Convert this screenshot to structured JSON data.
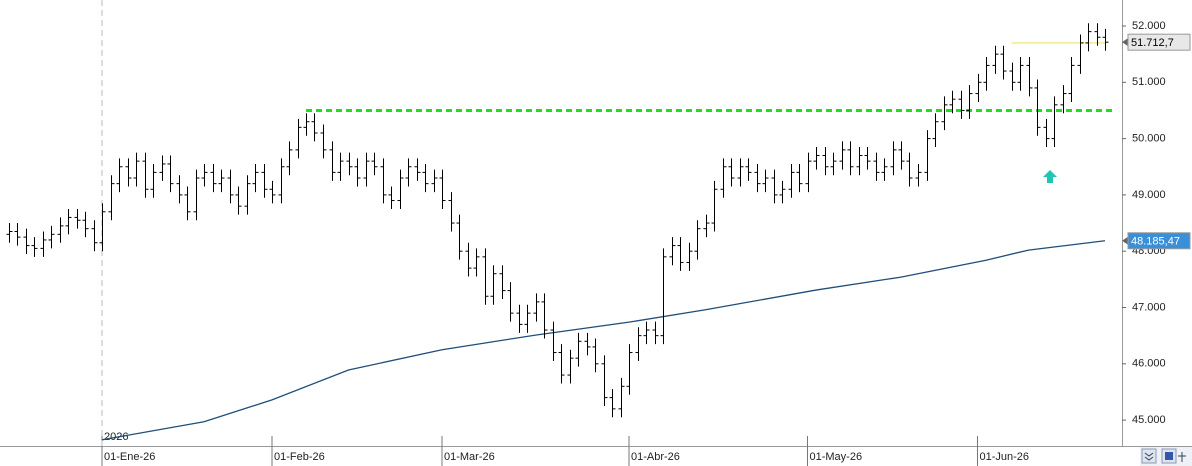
{
  "chart_data": {
    "type": "ohlc",
    "color": "#000000",
    "xlim": [
      -12,
      120
    ],
    "ylim": [
      44540,
      52462
    ],
    "yticks": [
      {
        "value": 52000,
        "label": "52.000"
      },
      {
        "value": 51000,
        "label": "51.000"
      },
      {
        "value": 50000,
        "label": "50.000"
      },
      {
        "value": 49000,
        "label": "49.000"
      },
      {
        "value": 48000,
        "label": "48.000"
      },
      {
        "value": 47000,
        "label": "47.000"
      },
      {
        "value": 46000,
        "label": "46.000"
      },
      {
        "value": 45000,
        "label": "45.000"
      }
    ],
    "xticks": [
      {
        "value": 0,
        "label": "01-Ene-26"
      },
      {
        "value": 20,
        "label": "01-Feb-26"
      },
      {
        "value": 40,
        "label": "01-Mar-26"
      },
      {
        "value": 62,
        "label": "01-Abr-26"
      },
      {
        "value": 83,
        "label": "01-May-26"
      },
      {
        "value": 103,
        "label": "01-Jun-26"
      }
    ],
    "year_label": "2026",
    "x": [
      -11,
      -10,
      -9,
      -8,
      -7,
      -6,
      -5,
      -4,
      -3,
      -2,
      -1,
      0,
      1,
      2,
      3,
      4,
      5,
      6,
      7,
      8,
      9,
      10,
      11,
      12,
      13,
      14,
      15,
      16,
      17,
      18,
      19,
      20,
      21,
      22,
      23,
      24,
      25,
      26,
      27,
      28,
      29,
      30,
      31,
      32,
      33,
      34,
      35,
      36,
      37,
      38,
      39,
      40,
      41,
      42,
      43,
      44,
      45,
      46,
      47,
      48,
      49,
      50,
      51,
      52,
      53,
      54,
      55,
      56,
      57,
      58,
      59,
      60,
      61,
      62,
      63,
      64,
      65,
      66,
      67,
      68,
      69,
      70,
      71,
      72,
      73,
      74,
      75,
      76,
      77,
      78,
      79,
      80,
      81,
      82,
      83,
      84,
      85,
      86,
      87,
      88,
      89,
      90,
      91,
      92,
      93,
      94,
      95,
      96,
      97,
      98,
      99,
      100,
      101,
      102,
      103,
      104,
      105,
      106,
      107,
      108,
      109,
      110,
      111,
      112,
      113,
      114,
      115,
      116,
      117,
      118
    ],
    "open": [
      48300,
      48350,
      48250,
      48100,
      48050,
      48200,
      48300,
      48450,
      48600,
      48550,
      48400,
      48150,
      48700,
      49200,
      49500,
      49300,
      49600,
      49100,
      49400,
      49550,
      49200,
      49000,
      48700,
      49300,
      49400,
      49200,
      49300,
      49000,
      48800,
      49200,
      49400,
      49100,
      49000,
      49500,
      49800,
      50200,
      50300,
      50100,
      49800,
      49400,
      49600,
      49500,
      49300,
      49600,
      49500,
      49000,
      48900,
      49300,
      49500,
      49400,
      49200,
      49300,
      48900,
      48500,
      48000,
      47700,
      47900,
      47200,
      47600,
      47300,
      46900,
      46700,
      46900,
      47100,
      46600,
      46200,
      45800,
      46100,
      46400,
      46300,
      46000,
      45400,
      45200,
      45600,
      46200,
      46500,
      46600,
      46500,
      47900,
      48100,
      47800,
      48000,
      48400,
      48500,
      49100,
      49500,
      49300,
      49500,
      49400,
      49200,
      49300,
      49000,
      49100,
      49400,
      49200,
      49600,
      49700,
      49500,
      49600,
      49800,
      49500,
      49700,
      49600,
      49400,
      49500,
      49800,
      49600,
      49300,
      49400,
      50000,
      50300,
      50600,
      50700,
      50500,
      50800,
      51000,
      51300,
      51500,
      51200,
      51000,
      51300,
      50900,
      50200,
      50000,
      50600,
      50800,
      51300,
      51700,
      51900,
      51800
    ],
    "high": [
      48500,
      48500,
      48400,
      48250,
      48350,
      48450,
      48600,
      48750,
      48750,
      48700,
      48550,
      48850,
      49350,
      49650,
      49650,
      49750,
      49750,
      49550,
      49700,
      49700,
      49350,
      49150,
      49450,
      49550,
      49550,
      49450,
      49450,
      49150,
      49350,
      49550,
      49550,
      49250,
      49650,
      49950,
      50350,
      50450,
      50450,
      50250,
      49950,
      49750,
      49750,
      49650,
      49750,
      49750,
      49650,
      49150,
      49450,
      49650,
      49650,
      49550,
      49450,
      49450,
      49050,
      48650,
      48150,
      48050,
      48050,
      47750,
      47750,
      47450,
      47050,
      47050,
      47250,
      47250,
      46750,
      46350,
      46250,
      46550,
      46550,
      46450,
      46150,
      45550,
      45750,
      46350,
      46650,
      46750,
      46750,
      48050,
      48250,
      48250,
      48150,
      48550,
      48650,
      49250,
      49650,
      49650,
      49650,
      49650,
      49550,
      49450,
      49450,
      49250,
      49550,
      49550,
      49750,
      49850,
      49850,
      49750,
      49950,
      49950,
      49850,
      49850,
      49750,
      49650,
      49950,
      49950,
      49750,
      49550,
      50150,
      50450,
      50750,
      50850,
      50850,
      50950,
      51150,
      51450,
      51650,
      51650,
      51350,
      51450,
      51450,
      51050,
      50350,
      50750,
      50950,
      51450,
      51850,
      52050,
      52050,
      51950
    ],
    "low": [
      48150,
      48100,
      47950,
      47900,
      47900,
      48050,
      48150,
      48300,
      48400,
      48250,
      48000,
      48000,
      48550,
      49050,
      49150,
      49150,
      48950,
      48950,
      49250,
      49050,
      48850,
      48550,
      48550,
      49150,
      49050,
      49050,
      48850,
      48650,
      48650,
      49050,
      48950,
      48850,
      48850,
      49350,
      49650,
      50050,
      49950,
      49650,
      49250,
      49250,
      49350,
      49150,
      49150,
      49350,
      48850,
      48750,
      48750,
      49150,
      49250,
      49050,
      49050,
      48750,
      48350,
      47850,
      47550,
      47550,
      47050,
      47050,
      47150,
      46750,
      46550,
      46550,
      46750,
      46450,
      46050,
      45650,
      45650,
      45950,
      46150,
      45850,
      45250,
      45050,
      45050,
      45450,
      46050,
      46350,
      46350,
      46350,
      47750,
      47650,
      47650,
      47850,
      48250,
      48350,
      48950,
      49150,
      49150,
      49250,
      49050,
      49050,
      48850,
      48850,
      48950,
      49050,
      49050,
      49450,
      49350,
      49350,
      49450,
      49350,
      49350,
      49450,
      49250,
      49250,
      49350,
      49450,
      49150,
      49150,
      49250,
      49850,
      50150,
      50450,
      50350,
      50350,
      50650,
      50850,
      51150,
      51050,
      50850,
      50850,
      50750,
      50050,
      49850,
      49850,
      50450,
      50650,
      51150,
      51550,
      51650,
      51560
    ],
    "close": [
      48350,
      48250,
      48100,
      48050,
      48200,
      48300,
      48450,
      48600,
      48550,
      48400,
      48150,
      48700,
      49200,
      49500,
      49300,
      49600,
      49100,
      49400,
      49550,
      49200,
      49000,
      48700,
      49300,
      49400,
      49200,
      49300,
      49000,
      48800,
      49200,
      49400,
      49100,
      49000,
      49500,
      49800,
      50200,
      50300,
      50100,
      49800,
      49400,
      49600,
      49500,
      49300,
      49600,
      49500,
      49000,
      48900,
      49300,
      49500,
      49400,
      49200,
      49300,
      48900,
      48500,
      48000,
      47700,
      47900,
      47200,
      47600,
      47300,
      46900,
      46700,
      46900,
      47100,
      46600,
      46200,
      45800,
      46100,
      46400,
      46300,
      46000,
      45400,
      45200,
      45600,
      46200,
      46500,
      46600,
      46500,
      47900,
      48100,
      47800,
      48000,
      48400,
      48500,
      49100,
      49500,
      49300,
      49500,
      49400,
      49200,
      49300,
      49000,
      49100,
      49400,
      49200,
      49600,
      49700,
      49500,
      49600,
      49800,
      49500,
      49700,
      49600,
      49400,
      49500,
      49800,
      49600,
      49300,
      49400,
      50000,
      50300,
      50600,
      50700,
      50500,
      50800,
      51000,
      51300,
      51500,
      51200,
      51000,
      51300,
      50900,
      50200,
      50000,
      50600,
      50800,
      51300,
      51700,
      51900,
      51800,
      51712.7
    ],
    "moving_average": {
      "color": "#1f4e79",
      "x": [
        0,
        12,
        20,
        29,
        40,
        51,
        62,
        71,
        84,
        94,
        104,
        109,
        118
      ],
      "values": [
        44650,
        44970,
        45360,
        45890,
        46250,
        46510,
        46740,
        46960,
        47310,
        47540,
        47840,
        48020,
        48185.47
      ]
    },
    "support": {
      "color": "#22dd22",
      "value": 50500,
      "x": [
        24,
        119
      ]
    },
    "resistance": {
      "color": "#f5f0a0",
      "value": 51700,
      "x": [
        107,
        118
      ]
    },
    "price_tags": [
      {
        "value": 51712.7,
        "label": "51.712,7",
        "color": "#e8e8e8",
        "text_color": "#000000"
      },
      {
        "value": 48185.47,
        "label": "48.185,47",
        "color": "#3a8fd9",
        "text_color": "#ffffff"
      }
    ]
  }
}
